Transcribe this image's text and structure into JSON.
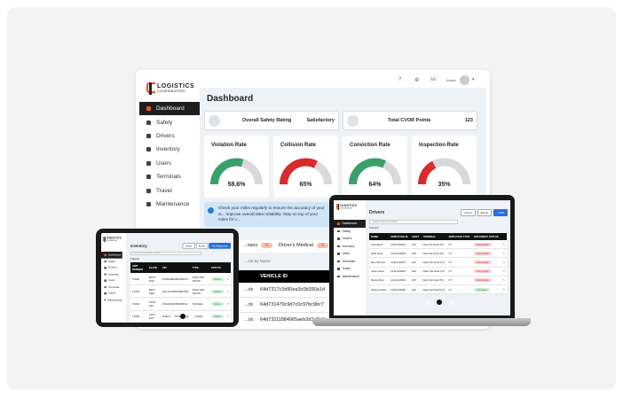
{
  "brand": {
    "line1": "LOGISTICS",
    "line2": "COORDINATORS"
  },
  "colors": {
    "accent": "#e8551f",
    "good": "#3aa06a",
    "bad": "#d92b2b",
    "track": "#d9d9d9",
    "primary": "#2a6fdc"
  },
  "sidebar": {
    "items": [
      {
        "label": "Dashboard",
        "icon": "grid-icon",
        "active": true
      },
      {
        "label": "Safety",
        "icon": "shield-icon"
      },
      {
        "label": "Drivers",
        "icon": "id-card-icon"
      },
      {
        "label": "Inventory",
        "icon": "truck-icon"
      },
      {
        "label": "Users",
        "icon": "users-icon"
      },
      {
        "label": "Terminals",
        "icon": "building-icon"
      },
      {
        "label": "Travel",
        "icon": "globe-icon"
      },
      {
        "label": "Maintenance",
        "icon": "wrench-icon"
      }
    ]
  },
  "topbar": {
    "user": "Admin",
    "icons": [
      "help-icon",
      "settings-icon",
      "activity-icon",
      "avatar-icon"
    ]
  },
  "dashboard": {
    "title": "Dashboard",
    "summary": [
      {
        "label": "Overall Safety Rating",
        "value": "Satisfactory"
      },
      {
        "label": "Total CVOR Points",
        "value": "123"
      }
    ],
    "gauges": [
      {
        "title": "Violation Rate",
        "value": 58.6,
        "display": "58.6%",
        "status": "good"
      },
      {
        "title": "Collision Rate",
        "value": 65,
        "display": "65%",
        "status": "bad"
      },
      {
        "title": "Conviction Rate",
        "value": 64,
        "display": "64%",
        "status": "good"
      },
      {
        "title": "Inspection Rate",
        "value": 35,
        "display": "35%",
        "status": "bad"
      }
    ],
    "banner": "Check your miles regularly to ensure the accuracy of your st... improve overall data reliability. Stay on top of your miles for c...",
    "expiry": [
      {
        "label": "...nses",
        "count": "0"
      },
      {
        "label": "Driver's Medical",
        "count": "0"
      }
    ],
    "search_placeholder": "...cle by Name",
    "table": {
      "headers": [
        "",
        "VEHICLE ID"
      ],
      "rows": [
        [
          "...ck",
          "64d7317c3d90ea3c0b390a1d"
        ],
        [
          "...ck",
          "64d731479c9d7c0c97bc9bc7"
        ],
        [
          "...ck",
          "64d73111884965aeb3d3d3b0"
        ]
      ]
    }
  },
  "laptop": {
    "title": "Drivers",
    "import": "Import",
    "export": "Export",
    "add": "+ Add",
    "search_placeholder": "Search Drivers by Name",
    "count": "6 Results",
    "headers": [
      "NAME",
      "EMPLOYEE ID",
      "SHIFT",
      "TERMINAL",
      "EMPLOYEE TYPE",
      "DOCUMENT STATUS"
    ],
    "rows": [
      [
        "Anna Bout",
        "ALFLG00001",
        "FW",
        "Dara Terminal (T2)",
        "FT",
        "Incomplete"
      ],
      [
        "Dedi Jinley",
        "ALFLG00002",
        "HW",
        "Dara Terminal (T2)",
        "FT",
        "Incomplete"
      ],
      [
        "Eva Johnson",
        "ALFLG00007",
        "HW",
        "Alpha Terminal (T1)",
        "FT",
        "Incomplete"
      ],
      [
        "Justin Hurst",
        "ALFLG00003",
        "HW",
        "Alpha Terminal (T1)",
        "FT",
        "Incomplete"
      ],
      [
        "Nicole Mont",
        "ALFLG00004",
        "FW",
        "Dara Terminal (T2)",
        "FT",
        "Incomplete"
      ],
      [
        "Zimara Jeffery",
        "ALFLG00005",
        "HW",
        "Alpha Terminal (T1)",
        "FT",
        "Complete"
      ]
    ]
  },
  "tablet": {
    "title": "Inventory",
    "import": "Import",
    "export": "Export",
    "add": "Add Equipment",
    "search_placeholder": "Search by unit number or plate",
    "count": "5 Results",
    "headers": [
      "UNIT NUMBER",
      "PLATE",
      "VIN",
      "TYPE",
      "STATUS"
    ],
    "rows": [
      [
        "T1002",
        "BG75 DGK",
        "4V4NC9EH5FN182371",
        "TRACTOR TRUCK",
        "Active"
      ],
      [
        "T1003",
        "BK47 AER",
        "1FUJGLDR8CSBL5782",
        "TRACTOR TRUCK",
        "Active"
      ],
      [
        "T1004",
        "KP78 ZXL",
        "1XKAD49X7BJ283641",
        "TRAILER",
        "Active"
      ],
      [
        "T1005",
        "LZ20 NVT",
        "3HSDJAPR5CN627190",
        "TRAILER",
        "Active"
      ],
      [
        "T1006",
        "LJ74 GXR",
        "1M1AN07Y9GM019352",
        "TRACTOR TRUCK",
        "Active"
      ]
    ]
  }
}
